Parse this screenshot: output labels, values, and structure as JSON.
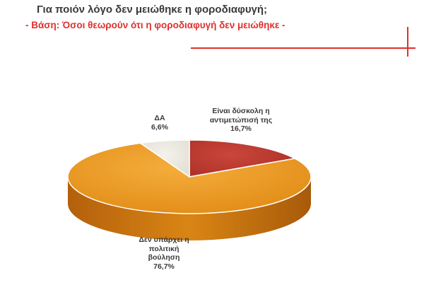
{
  "header": {
    "title": "Για ποιόν λόγο δεν μειώθηκε η φοροδιαφυγή;",
    "subtitle": "- Βάση: Όσοι θεωρούν ότι η φοροδιαφυγή δεν μειώθηκε -",
    "accent_color": "#e0302c"
  },
  "chart_data": {
    "type": "pie",
    "title": "Για ποιόν λόγο δεν μειώθηκε η φοροδιαφυγή;",
    "subtitle": "- Βάση: Όσοι θεωρούν ότι η φοροδιαφυγή δεν μειώθηκε -",
    "style": "3d",
    "slices": [
      {
        "label_lines": [
          "Είναι δύσκολη η",
          "αντιμετώπισή της"
        ],
        "value": 16.7,
        "value_label": "16,7%",
        "color": "#b8342b"
      },
      {
        "label_lines": [
          "Δεν υπάρχει η",
          "πολιτική",
          "βούληση"
        ],
        "value": 76.7,
        "value_label": "76,7%",
        "color": "#e8961f"
      },
      {
        "label_lines": [
          "ΔΑ"
        ],
        "value": 6.6,
        "value_label": "6,6%",
        "color": "#e9e6dc"
      }
    ]
  }
}
